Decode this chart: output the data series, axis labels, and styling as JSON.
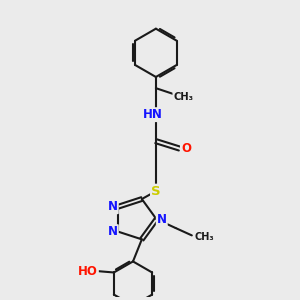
{
  "bg_color": "#ebebeb",
  "bond_color": "#1a1a1a",
  "bond_width": 1.5,
  "atom_colors": {
    "N": "#1414ff",
    "O": "#ff1400",
    "S": "#cccc00",
    "C": "#1a1a1a"
  },
  "font_size": 8.5,
  "fig_size": [
    3.0,
    3.0
  ],
  "dpi": 100,
  "xlim": [
    0,
    10
  ],
  "ylim": [
    0,
    10
  ]
}
